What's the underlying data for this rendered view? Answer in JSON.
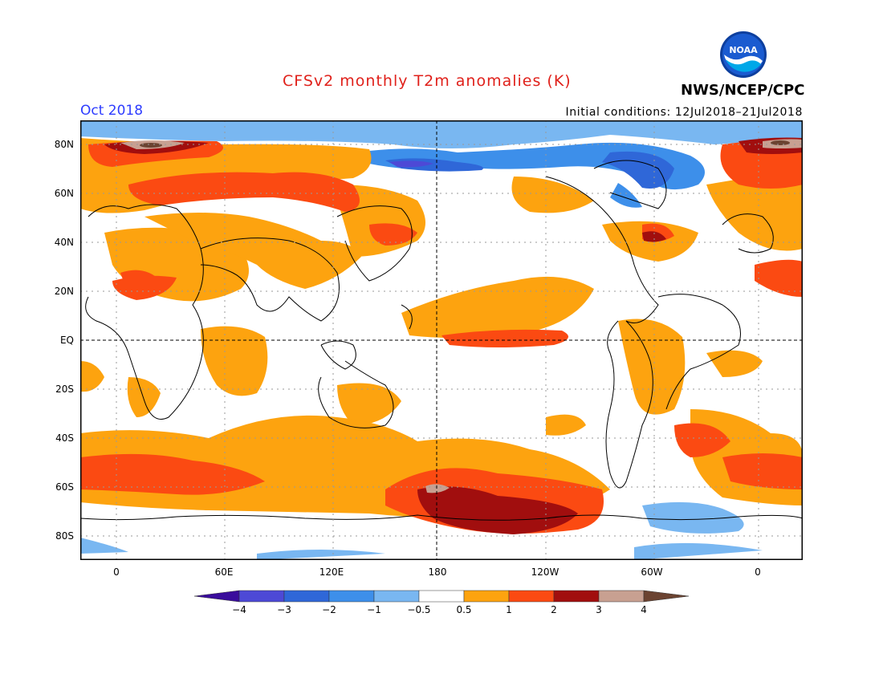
{
  "header": {
    "title": "CFSv2 monthly T2m anomalies (K)",
    "month": "Oct 2018",
    "initial_conditions": "Initial conditions: 12Jul2018–21Jul2018",
    "agency": "NWS/NCEP/CPC",
    "logo_text": "NOAA"
  },
  "map": {
    "type": "heatmap",
    "projection": "equirectangular",
    "lon_range": [
      -20,
      380
    ],
    "lat_range": [
      -90,
      90
    ],
    "lat_labels": [
      "80N",
      "60N",
      "40N",
      "20N",
      "EQ",
      "20S",
      "40S",
      "60S",
      "80S"
    ],
    "lon_labels": [
      "0",
      "60E",
      "120E",
      "180",
      "120W",
      "60W",
      "0"
    ],
    "grid": "dotted",
    "reference_lines": [
      "EQ",
      "180"
    ]
  },
  "colorbar": {
    "ticks": [
      "−4",
      "−3",
      "−2",
      "−1",
      "−0.5",
      "0.5",
      "1",
      "2",
      "3",
      "4"
    ],
    "colors": [
      "#3a0d9c",
      "#4d49d6",
      "#2f67d8",
      "#3d8fea",
      "#79b7f1",
      "#ffffff",
      "#fda30f",
      "#fb4a12",
      "#a10e0e",
      "#c8a091",
      "#6b4331"
    ]
  }
}
